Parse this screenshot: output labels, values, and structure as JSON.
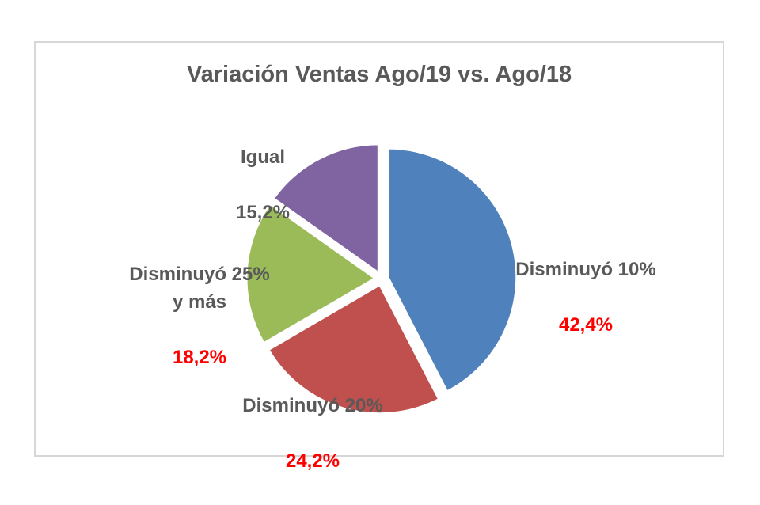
{
  "chart_data": {
    "type": "pie",
    "title": "Variación Ventas Ago/19 vs. Ago/18",
    "categories": [
      "Disminuyó 10%",
      "Disminuyó 20%",
      "Disminuyó 25% y más",
      "Igual"
    ],
    "values": [
      42.4,
      24.2,
      18.2,
      15.2
    ],
    "start_angle_deg": 0,
    "direction": "clockwise",
    "legend": "none",
    "exploded": true,
    "slice_border_color": "#ffffff",
    "label_text_color": "#595959",
    "highlight_value_color": "#ff0000",
    "title_color": "#595959",
    "frame_border_color": "#d7d7d7",
    "slices": [
      {
        "label": "Disminuyó 10%",
        "value": 42.4,
        "value_label": "42,4%",
        "color": "#4f81bd",
        "value_color": "#ff0000"
      },
      {
        "label": "Disminuyó 20%",
        "value": 24.2,
        "value_label": "24,2%",
        "color": "#c0504d",
        "value_color": "#ff0000"
      },
      {
        "label": "Disminuyó 25%\ny más",
        "value": 18.2,
        "value_label": "18,2%",
        "color": "#9bbb59",
        "value_color": "#ff0000"
      },
      {
        "label": "Igual",
        "value": 15.2,
        "value_label": "15,2%",
        "color": "#8064a2",
        "value_color": "#595959"
      }
    ]
  }
}
